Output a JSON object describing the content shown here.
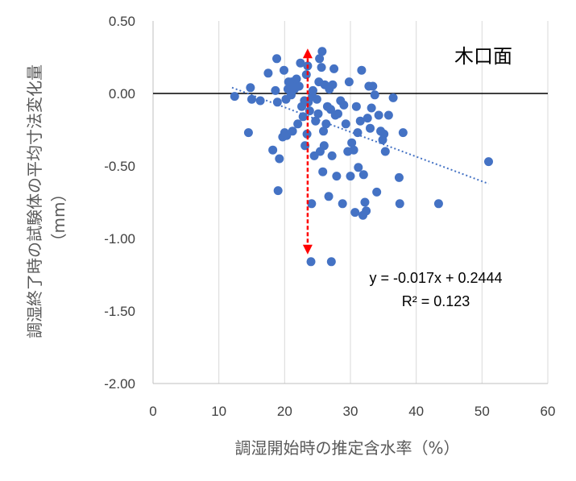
{
  "chart_data": {
    "type": "scatter",
    "xlabel": "調湿開始時の推定含水率（%）",
    "ylabel": "調湿終了時の試験体の平均寸法変化量",
    "ylabel_unit": "（mm）",
    "inset_label": "木口面",
    "xlim": [
      0,
      60
    ],
    "ylim": [
      -2.0,
      0.5
    ],
    "x_ticks": [
      "0",
      "10",
      "20",
      "30",
      "40",
      "50",
      "60"
    ],
    "y_ticks": [
      "0.50",
      "0.00",
      "-0.50",
      "-1.00",
      "-1.50",
      "-2.00"
    ],
    "grid": "vertical",
    "marker_color": "#4472C4",
    "trendline": {
      "equation": "y = -0.017x + 0.2444",
      "r2": "R² = 0.123",
      "slope": -0.017,
      "intercept": 0.2444,
      "x_range": [
        12,
        51
      ],
      "color": "#4472C4",
      "style": "dotted"
    },
    "range_arrow": {
      "x": 23.5,
      "y_top": 0.31,
      "y_bottom": -1.11,
      "color": "#FF0000"
    },
    "points": [
      [
        12.4,
        -0.02
      ],
      [
        14.5,
        -0.27
      ],
      [
        14.8,
        0.04
      ],
      [
        15.0,
        -0.04
      ],
      [
        16.3,
        -0.05
      ],
      [
        17.5,
        0.14
      ],
      [
        18.2,
        -0.39
      ],
      [
        18.8,
        0.24
      ],
      [
        18.6,
        0.02
      ],
      [
        18.9,
        -0.06
      ],
      [
        19.0,
        -0.67
      ],
      [
        19.2,
        -0.45
      ],
      [
        19.7,
        -0.3
      ],
      [
        19.9,
        0.16
      ],
      [
        20.0,
        -0.27
      ],
      [
        20.2,
        -0.04
      ],
      [
        20.3,
        -0.29
      ],
      [
        20.5,
        0.03
      ],
      [
        20.6,
        0.08
      ],
      [
        21.0,
        -0.01
      ],
      [
        21.1,
        0.08
      ],
      [
        21.2,
        -0.26
      ],
      [
        21.5,
        0.03
      ],
      [
        21.8,
        0.1
      ],
      [
        22.0,
        -0.21
      ],
      [
        22.2,
        0.05
      ],
      [
        22.4,
        0.21
      ],
      [
        22.6,
        -0.09
      ],
      [
        22.8,
        -0.16
      ],
      [
        23.0,
        -0.05
      ],
      [
        23.1,
        -0.36
      ],
      [
        23.3,
        0.13
      ],
      [
        23.4,
        -0.28
      ],
      [
        23.5,
        0.19
      ],
      [
        23.6,
        -0.06
      ],
      [
        23.8,
        -0.12
      ],
      [
        24.0,
        -1.16
      ],
      [
        24.1,
        -0.76
      ],
      [
        24.2,
        -0.02
      ],
      [
        24.3,
        0.02
      ],
      [
        24.5,
        -0.43
      ],
      [
        24.7,
        -0.19
      ],
      [
        24.9,
        -0.04
      ],
      [
        25.1,
        -0.14
      ],
      [
        25.2,
        0.08
      ],
      [
        25.3,
        0.24
      ],
      [
        25.4,
        -0.4
      ],
      [
        25.6,
        0.18
      ],
      [
        25.7,
        0.29
      ],
      [
        25.8,
        -0.54
      ],
      [
        25.9,
        -0.26
      ],
      [
        26.0,
        -0.36
      ],
      [
        26.1,
        0.06
      ],
      [
        26.3,
        -0.21
      ],
      [
        26.5,
        -0.09
      ],
      [
        26.7,
        -0.71
      ],
      [
        26.8,
        0.03
      ],
      [
        27.0,
        -0.11
      ],
      [
        27.1,
        -1.16
      ],
      [
        27.2,
        -0.43
      ],
      [
        27.3,
        0.06
      ],
      [
        27.5,
        0.17
      ],
      [
        27.7,
        -0.15
      ],
      [
        27.9,
        -0.57
      ],
      [
        28.1,
        -0.14
      ],
      [
        28.5,
        -0.05
      ],
      [
        28.8,
        -0.76
      ],
      [
        29.0,
        -0.08
      ],
      [
        29.3,
        -0.21
      ],
      [
        29.6,
        -0.4
      ],
      [
        29.8,
        0.08
      ],
      [
        30.0,
        -0.57
      ],
      [
        30.2,
        -0.34
      ],
      [
        30.5,
        -0.39
      ],
      [
        30.7,
        -0.82
      ],
      [
        30.9,
        -0.09
      ],
      [
        31.1,
        -0.27
      ],
      [
        31.2,
        -0.51
      ],
      [
        31.5,
        -0.19
      ],
      [
        31.7,
        0.16
      ],
      [
        31.9,
        -0.84
      ],
      [
        32.0,
        -0.56
      ],
      [
        32.2,
        -0.75
      ],
      [
        32.4,
        -0.81
      ],
      [
        32.6,
        -0.17
      ],
      [
        32.8,
        0.05
      ],
      [
        33.0,
        -0.24
      ],
      [
        33.2,
        -0.1
      ],
      [
        33.4,
        0.05
      ],
      [
        33.7,
        -0.01
      ],
      [
        34.0,
        -0.68
      ],
      [
        34.3,
        -0.15
      ],
      [
        34.6,
        -0.26
      ],
      [
        34.9,
        -0.32
      ],
      [
        35.1,
        -0.28
      ],
      [
        35.3,
        -0.4
      ],
      [
        35.8,
        -0.15
      ],
      [
        36.5,
        -0.03
      ],
      [
        37.4,
        -0.58
      ],
      [
        37.5,
        -0.76
      ],
      [
        38.0,
        -0.27
      ],
      [
        43.4,
        -0.76
      ],
      [
        51.0,
        -0.47
      ]
    ]
  }
}
